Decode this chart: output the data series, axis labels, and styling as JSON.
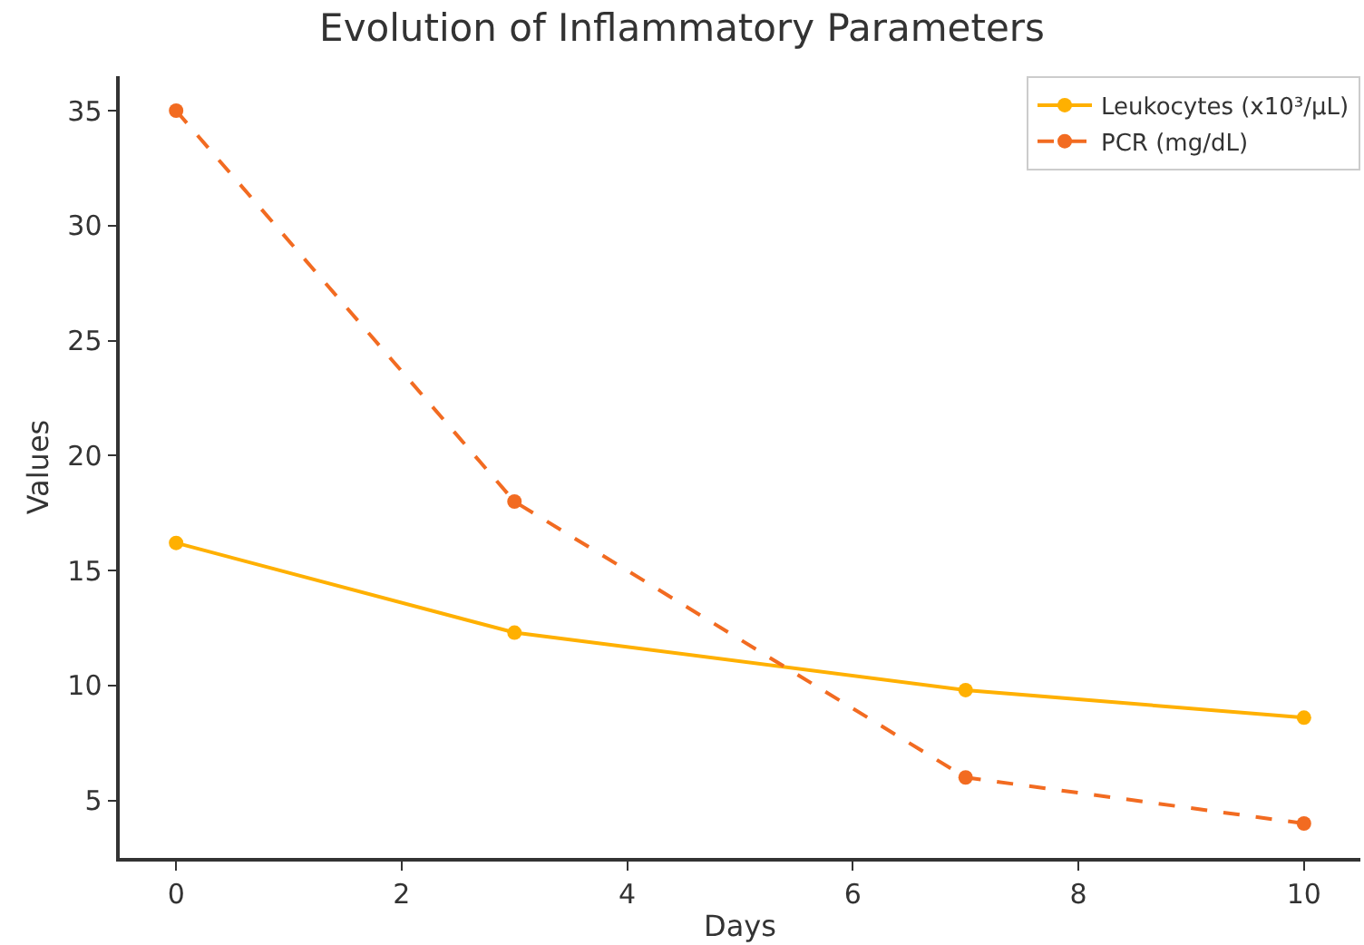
{
  "chart_data": {
    "type": "line",
    "title": "Evolution of Inflammatory Parameters",
    "xlabel": "Days",
    "ylabel": "Values",
    "x": [
      0,
      3,
      7,
      10
    ],
    "series": [
      {
        "name": "Leukocytes (x10³/µL)",
        "color": "#ffb000",
        "values": [
          16.2,
          12.3,
          9.8,
          8.6
        ],
        "line_style": "solid"
      },
      {
        "name": "PCR (mg/dL)",
        "color": "#f26b21",
        "values": [
          35,
          18,
          6,
          4
        ],
        "line_style": "dashed"
      }
    ],
    "xlim": [
      -0.5,
      10.5
    ],
    "xticks": [
      0,
      2,
      4,
      6,
      8,
      10
    ],
    "ylim": [
      2.5,
      36.5
    ],
    "yticks": [
      5,
      10,
      15,
      20,
      25,
      30,
      35
    ],
    "marker": "circle",
    "legend": "top right"
  }
}
